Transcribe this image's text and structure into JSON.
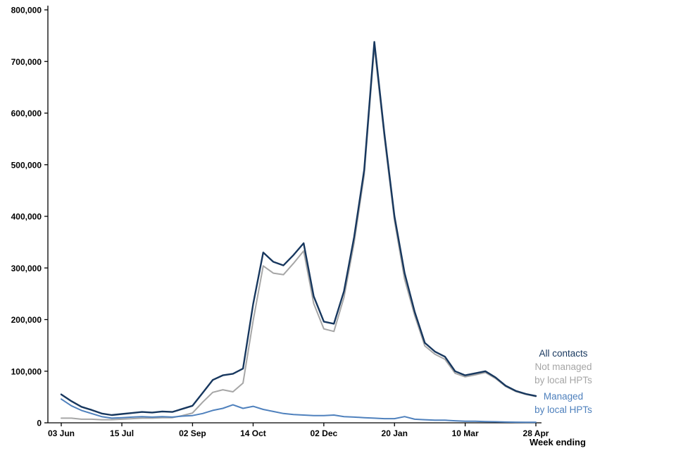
{
  "chart_data": {
    "type": "line",
    "x_label": "Week ending",
    "ylim": [
      0,
      800000
    ],
    "y_tick_interval": 100000,
    "y_tick_labels": [
      "0",
      "100,000",
      "200,000",
      "300,000",
      "400,000",
      "500,000",
      "600,000",
      "700,000",
      "800,000"
    ],
    "x_tick_labels": [
      {
        "index": 0,
        "label": "03 Jun"
      },
      {
        "index": 6,
        "label": "15 Jul"
      },
      {
        "index": 13,
        "label": "02 Sep"
      },
      {
        "index": 19,
        "label": "14 Oct"
      },
      {
        "index": 26,
        "label": "02 Dec"
      },
      {
        "index": 33,
        "label": "20 Jan"
      },
      {
        "index": 40,
        "label": "10 Mar"
      },
      {
        "index": 47,
        "label": "28 Apr"
      }
    ],
    "grid": false,
    "legend_position": "right",
    "series": [
      {
        "name": "All contacts",
        "color": "#17375E",
        "values": [
          55000,
          42000,
          31000,
          25000,
          18000,
          15000,
          17000,
          19000,
          21000,
          20000,
          22000,
          21000,
          27000,
          33000,
          58000,
          83000,
          92000,
          95000,
          105000,
          230000,
          330000,
          312000,
          305000,
          325000,
          348000,
          245000,
          196000,
          192000,
          255000,
          360000,
          490000,
          738000,
          560000,
          400000,
          290000,
          215000,
          155000,
          138000,
          128000,
          100000,
          92000,
          96000,
          100000,
          88000,
          72000,
          62000,
          56000,
          52000
        ]
      },
      {
        "name": "Not managed by local HPTs",
        "color": "#A6A6A6",
        "values": [
          9000,
          9000,
          7000,
          7000,
          6000,
          6000,
          7000,
          8000,
          9000,
          9000,
          10000,
          10000,
          14000,
          19000,
          40000,
          59000,
          64000,
          60000,
          77000,
          198000,
          304000,
          290000,
          287000,
          309000,
          333000,
          231000,
          182000,
          177000,
          243000,
          349000,
          480000,
          729000,
          552000,
          392000,
          278000,
          208000,
          149000,
          133000,
          123000,
          96000,
          89000,
          93000,
          97500,
          86000,
          70500,
          60800,
          55000,
          51000
        ]
      },
      {
        "name": "Managed by local HPTs",
        "color": "#4F81BD",
        "values": [
          46000,
          33000,
          24000,
          18000,
          12000,
          9000,
          10000,
          11000,
          12000,
          11000,
          12000,
          11000,
          13000,
          14000,
          18000,
          24000,
          28000,
          35000,
          28000,
          32000,
          26000,
          22000,
          18000,
          16000,
          15000,
          14000,
          14000,
          15000,
          12000,
          11000,
          10000,
          9000,
          8000,
          8000,
          12000,
          7000,
          6000,
          5000,
          5000,
          4000,
          3000,
          3000,
          2500,
          2000,
          1500,
          1200,
          1000,
          1000
        ]
      }
    ]
  },
  "legend": {
    "entries": [
      {
        "color": "#17375E",
        "line1": "All contacts",
        "line2": ""
      },
      {
        "color": "#A6A6A6",
        "line1": "Not managed",
        "line2": "by local HPTs"
      },
      {
        "color": "#4F81BD",
        "line1": "Managed",
        "line2": "by local HPTs"
      }
    ]
  },
  "axis": {
    "week_ending_label": "Week ending"
  }
}
